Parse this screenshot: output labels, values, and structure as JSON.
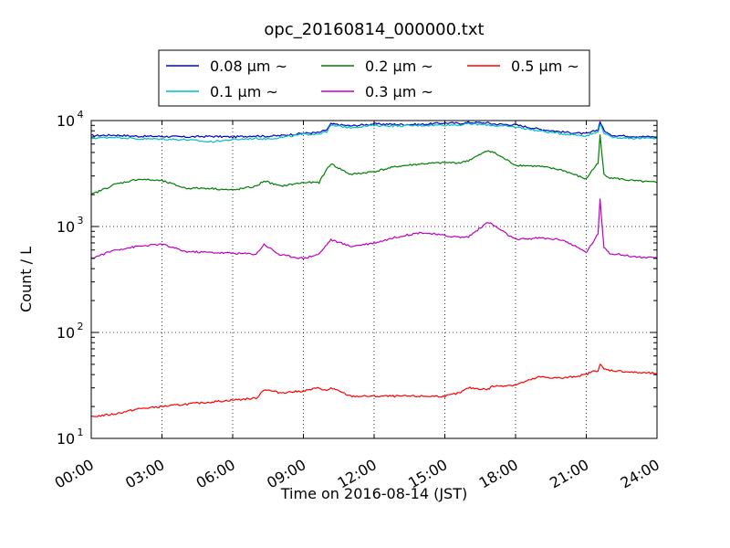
{
  "chart_data": {
    "type": "line",
    "title": "opc_20160814_000000.txt",
    "xlabel": "Time on 2016-08-14 (JST)",
    "ylabel": "Count / L",
    "yscale": "log",
    "ylim": [
      10,
      10000
    ],
    "xlim": [
      "00:00",
      "24:00"
    ],
    "x_tick_labels": [
      "00:00",
      "03:00",
      "06:00",
      "09:00",
      "12:00",
      "15:00",
      "18:00",
      "21:00",
      "24:00"
    ],
    "y_tick_labels": [
      {
        "base": "10",
        "exp": "1",
        "value": 10
      },
      {
        "base": "10",
        "exp": "2",
        "value": 100
      },
      {
        "base": "10",
        "exp": "3",
        "value": 1000
      },
      {
        "base": "10",
        "exp": "4",
        "value": 10000
      }
    ],
    "grid": true,
    "legend_position": "top-center",
    "legend_columns": 3,
    "x": [
      "00:00",
      "01:00",
      "02:00",
      "03:00",
      "04:00",
      "05:00",
      "06:00",
      "07:00",
      "07:20",
      "08:00",
      "09:00",
      "09:40",
      "10:00",
      "10:10",
      "11:00",
      "12:00",
      "13:00",
      "14:00",
      "15:00",
      "15:40",
      "16:00",
      "16:50",
      "17:00",
      "18:00",
      "19:00",
      "20:00",
      "21:00",
      "21:10",
      "21:30",
      "21:35",
      "21:45",
      "22:00",
      "23:00",
      "24:00"
    ],
    "series": [
      {
        "name": "0.08 µm ~",
        "color": "#0000cc",
        "values": [
          7200,
          7300,
          7100,
          7100,
          7000,
          7100,
          7000,
          7200,
          7100,
          7200,
          7600,
          7700,
          8200,
          9300,
          8900,
          9300,
          9200,
          9200,
          9500,
          9400,
          9600,
          9500,
          9300,
          9100,
          8300,
          7800,
          7500,
          7700,
          8200,
          9800,
          8100,
          7300,
          7100,
          7000
        ]
      },
      {
        "name": "0.1 µm ~",
        "color": "#00bfbf",
        "values": [
          6800,
          7000,
          6700,
          6700,
          6600,
          6300,
          6600,
          6800,
          6700,
          6900,
          7400,
          7500,
          7900,
          9000,
          8600,
          9000,
          8900,
          9000,
          9100,
          9100,
          9300,
          9100,
          9000,
          8700,
          8000,
          7500,
          7200,
          7400,
          7800,
          9300,
          7700,
          7000,
          6800,
          6800
        ]
      },
      {
        "name": "0.2 µm ~",
        "color": "#007f00",
        "values": [
          2000,
          2500,
          2800,
          2700,
          2300,
          2300,
          2200,
          2400,
          2700,
          2400,
          2600,
          2600,
          3500,
          3900,
          3100,
          3300,
          3700,
          3900,
          4000,
          4000,
          4200,
          5200,
          5100,
          3800,
          3700,
          3400,
          2800,
          3200,
          4000,
          7200,
          3100,
          2900,
          2700,
          2600
        ]
      },
      {
        "name": "0.3 µm ~",
        "color": "#bf00bf",
        "values": [
          500,
          600,
          650,
          680,
          580,
          570,
          560,
          550,
          680,
          540,
          500,
          550,
          680,
          750,
          650,
          700,
          800,
          880,
          820,
          790,
          800,
          1100,
          1050,
          750,
          780,
          750,
          570,
          650,
          850,
          1800,
          640,
          560,
          520,
          500
        ]
      },
      {
        "name": "0.5 µm ~",
        "color": "#ff0000",
        "values": [
          16,
          17,
          19,
          20,
          21,
          22,
          23,
          24,
          29,
          27,
          28,
          30,
          28,
          30,
          25,
          25,
          25,
          25,
          25,
          27,
          30,
          29,
          31,
          32,
          38,
          37,
          40,
          42,
          44,
          50,
          45,
          44,
          42,
          41
        ]
      }
    ]
  }
}
